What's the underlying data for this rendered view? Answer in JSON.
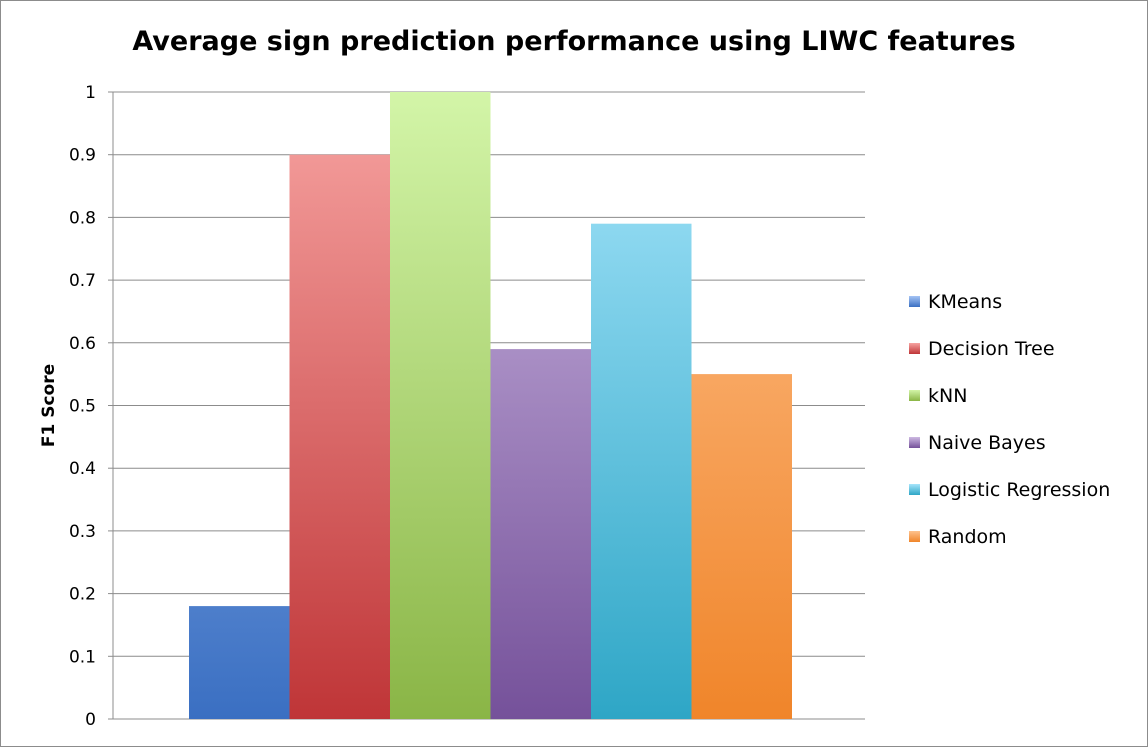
{
  "chart_data": {
    "type": "bar",
    "title": "Average sign prediction performance using LIWC features",
    "ylabel": "F1 Score",
    "xlabel": "",
    "ylim": [
      0,
      1
    ],
    "yticks": [
      "0",
      "0.1",
      "0.2",
      "0.3",
      "0.4",
      "0.5",
      "0.6",
      "0.7",
      "0.8",
      "0.9",
      "1"
    ],
    "grid": true,
    "legend_position": "right",
    "series": [
      {
        "name": "KMeans",
        "value": 0.18,
        "color_top": "#a5c4f5",
        "color_bottom": "#3a6fc2"
      },
      {
        "name": "Decision Tree",
        "value": 0.9,
        "color_top": "#f7a3a1",
        "color_bottom": "#bf3537"
      },
      {
        "name": "kNN",
        "value": 1.0,
        "color_top": "#d3f5a8",
        "color_bottom": "#8ab546"
      },
      {
        "name": "Naive Bayes",
        "value": 0.59,
        "color_top": "#cdb9e2",
        "color_bottom": "#75519a"
      },
      {
        "name": "Logistic Regression",
        "value": 0.79,
        "color_top": "#a6e5fb",
        "color_bottom": "#2ea6c6"
      },
      {
        "name": "Random",
        "value": 0.55,
        "color_top": "#fec28e",
        "color_bottom": "#f0852a"
      }
    ]
  }
}
